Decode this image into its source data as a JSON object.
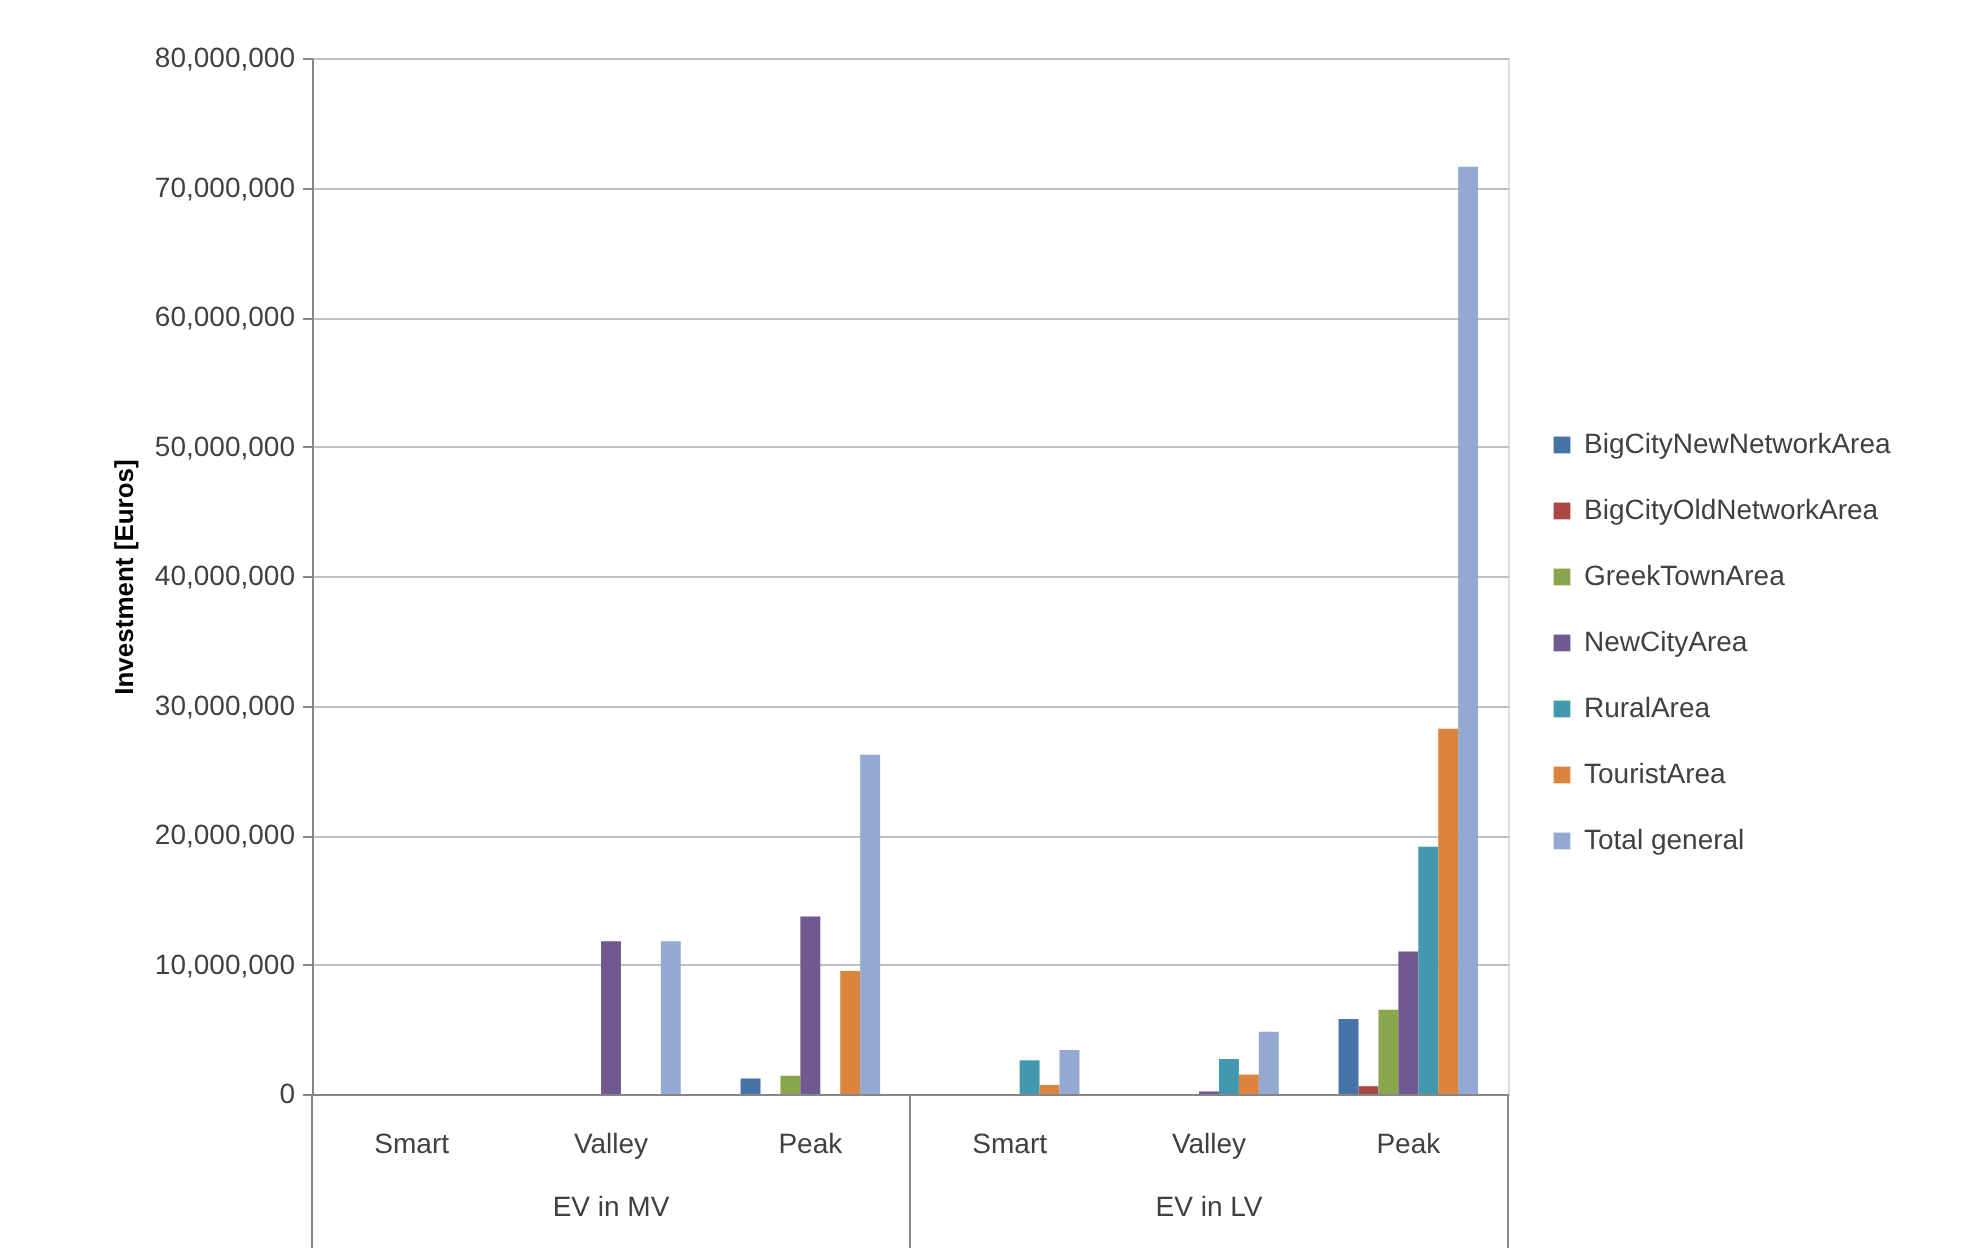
{
  "chart_data": {
    "type": "bar",
    "ylabel": "Investment [Euros]",
    "categories": [
      "Smart",
      "Valley",
      "Peak",
      "Smart",
      "Valley",
      "Peak"
    ],
    "annotations": [
      "EV in MV",
      "EV in LV"
    ],
    "series": [
      {
        "name": "BigCityNewNetworkArea",
        "color": "#4572a7",
        "values": [
          null,
          null,
          1200000,
          null,
          null,
          5800000
        ]
      },
      {
        "name": "BigCityOldNetworkArea",
        "color": "#aa4643",
        "values": [
          null,
          null,
          null,
          null,
          null,
          600000
        ]
      },
      {
        "name": "GreekTownArea",
        "color": "#89a54e",
        "values": [
          null,
          null,
          1400000,
          null,
          null,
          6500000
        ]
      },
      {
        "name": "NewCityArea",
        "color": "#71588f",
        "values": [
          null,
          11800000,
          13700000,
          null,
          200000,
          11000000
        ]
      },
      {
        "name": "RuralArea",
        "color": "#4198af",
        "values": [
          null,
          null,
          null,
          2600000,
          2700000,
          19100000
        ]
      },
      {
        "name": "TouristArea",
        "color": "#db843d",
        "values": [
          null,
          null,
          9500000,
          700000,
          1500000,
          28200000
        ]
      },
      {
        "name": "Total general",
        "color": "#93a9cf",
        "values": [
          null,
          11800000,
          26200000,
          3400000,
          4800000,
          71600000
        ]
      }
    ],
    "ylim": [
      0,
      80000000
    ],
    "yticks": [
      0,
      {
        "value": 10000000,
        "label": "10,000,000"
      },
      {
        "value": 20000000,
        "label": "20,000,000"
      },
      {
        "value": 30000000,
        "label": "30,000,000"
      },
      {
        "value": 40000000,
        "label": "40,000,000"
      },
      {
        "value": 50000000,
        "label": "50,000,000"
      },
      {
        "value": 60000000,
        "label": "60,000,000"
      },
      {
        "value": 70000000,
        "label": "70,000,000"
      },
      {
        "value": 80000000,
        "label": "80,000,000"
      }
    ],
    "grid": "y",
    "legend": "right"
  }
}
